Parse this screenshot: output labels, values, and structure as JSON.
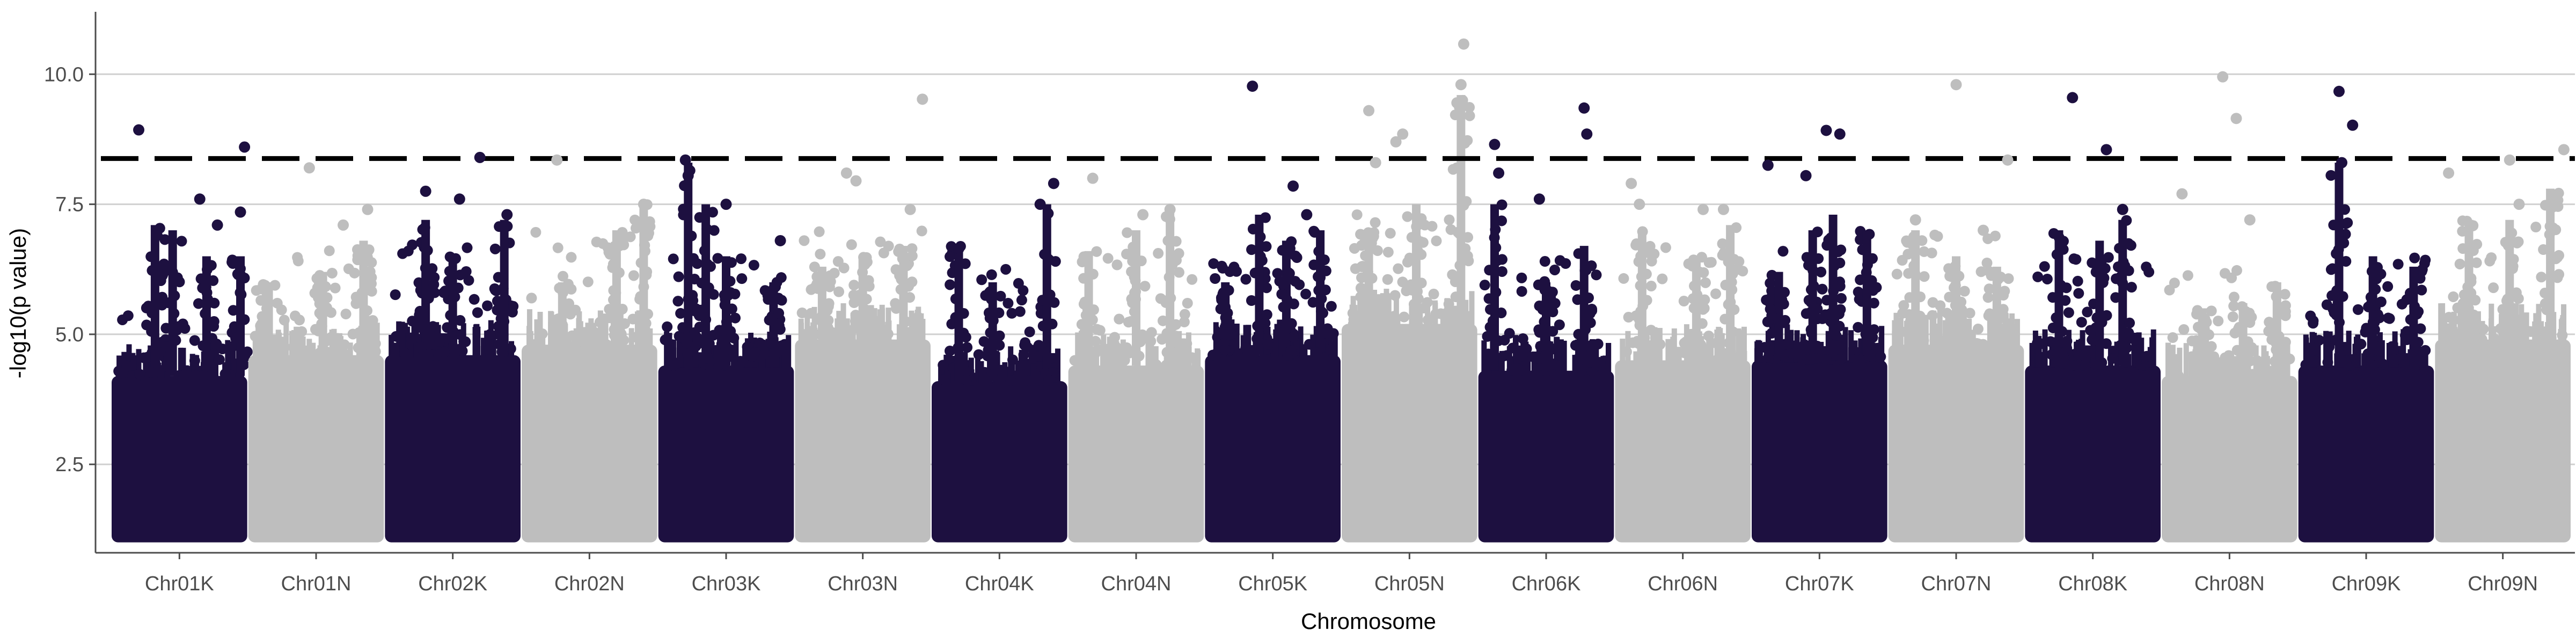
{
  "chart_data": {
    "type": "scatter",
    "title": "",
    "xlabel": "Chromosome",
    "ylabel": "-log10(p value)",
    "ylim": [
      0.8,
      11.2
    ],
    "yticks": [
      2.5,
      5.0,
      7.5,
      10.0
    ],
    "ytick_labels": [
      "2.5",
      "5.0",
      "7.5",
      "10.0"
    ],
    "grid": "horizontal major",
    "legend": "none",
    "threshold": 8.38,
    "threshold_style": "dashed",
    "colors": {
      "odd": "#1d1040",
      "even": "#bebebe",
      "threshold": "#000000",
      "grid": "#d0d0d0",
      "axis": "#4d4d4d"
    },
    "categories": [
      "Chr01K",
      "Chr01N",
      "Chr02K",
      "Chr02N",
      "Chr03K",
      "Chr03N",
      "Chr04K",
      "Chr04N",
      "Chr05K",
      "Chr05N",
      "Chr06K",
      "Chr06N",
      "Chr07K",
      "Chr07N",
      "Chr08K",
      "Chr08N",
      "Chr09K",
      "Chr09N"
    ],
    "series": [
      {
        "chromosome": "Chr01K",
        "color": "#1d1040",
        "band_max": 4.2,
        "peaks": [
          [
            0.32,
            7.1
          ],
          [
            0.45,
            7.0
          ],
          [
            0.7,
            6.5
          ],
          [
            0.95,
            6.5
          ]
        ],
        "points": [
          [
            0.2,
            8.93
          ],
          [
            0.65,
            7.6
          ],
          [
            0.78,
            7.1
          ],
          [
            0.95,
            7.35
          ],
          [
            0.98,
            8.6
          ]
        ]
      },
      {
        "chromosome": "Chr01N",
        "color": "#bebebe",
        "band_max": 4.6,
        "peaks": [
          [
            0.15,
            6.0
          ],
          [
            0.55,
            6.2
          ],
          [
            0.85,
            6.8
          ]
        ],
        "points": [
          [
            0.45,
            8.2
          ],
          [
            0.7,
            7.1
          ],
          [
            0.88,
            7.4
          ]
        ]
      },
      {
        "chromosome": "Chr02K",
        "color": "#1d1040",
        "band_max": 4.6,
        "peaks": [
          [
            0.3,
            7.2
          ],
          [
            0.5,
            6.5
          ],
          [
            0.88,
            7.2
          ]
        ],
        "points": [
          [
            0.3,
            7.75
          ],
          [
            0.55,
            7.6
          ],
          [
            0.7,
            8.4
          ],
          [
            0.9,
            7.3
          ]
        ]
      },
      {
        "chromosome": "Chr02N",
        "color": "#bebebe",
        "band_max": 4.8,
        "peaks": [
          [
            0.3,
            6.0
          ],
          [
            0.7,
            7.0
          ],
          [
            0.9,
            7.5
          ]
        ],
        "points": [
          [
            0.26,
            8.35
          ],
          [
            0.9,
            7.5
          ]
        ]
      },
      {
        "chromosome": "Chr03K",
        "color": "#1d1040",
        "band_max": 4.4,
        "peaks": [
          [
            0.22,
            8.3
          ],
          [
            0.35,
            7.5
          ],
          [
            0.5,
            6.5
          ],
          [
            0.85,
            6.0
          ]
        ],
        "points": [
          [
            0.2,
            8.35
          ],
          [
            0.22,
            8.05
          ],
          [
            0.5,
            7.5
          ],
          [
            0.9,
            6.8
          ]
        ]
      },
      {
        "chromosome": "Chr03N",
        "color": "#bebebe",
        "band_max": 4.9,
        "peaks": [
          [
            0.2,
            6.3
          ],
          [
            0.5,
            6.5
          ],
          [
            0.8,
            6.7
          ]
        ],
        "points": [
          [
            0.38,
            8.1
          ],
          [
            0.45,
            7.95
          ],
          [
            0.85,
            7.4
          ],
          [
            0.94,
            9.52
          ]
        ]
      },
      {
        "chromosome": "Chr04K",
        "color": "#1d1040",
        "band_max": 4.1,
        "peaks": [
          [
            0.2,
            6.7
          ],
          [
            0.45,
            6.0
          ],
          [
            0.85,
            7.5
          ]
        ],
        "points": [
          [
            0.2,
            6.65
          ],
          [
            0.8,
            7.5
          ],
          [
            0.9,
            7.9
          ]
        ]
      },
      {
        "chromosome": "Chr04N",
        "color": "#bebebe",
        "band_max": 4.4,
        "peaks": [
          [
            0.15,
            6.6
          ],
          [
            0.5,
            7.0
          ],
          [
            0.75,
            7.4
          ]
        ],
        "points": [
          [
            0.18,
            8.0
          ],
          [
            0.55,
            7.3
          ],
          [
            0.75,
            7.4
          ]
        ]
      },
      {
        "chromosome": "Chr05K",
        "color": "#1d1040",
        "band_max": 4.6,
        "peaks": [
          [
            0.15,
            6.0
          ],
          [
            0.4,
            7.3
          ],
          [
            0.6,
            6.8
          ],
          [
            0.85,
            7.0
          ]
        ],
        "points": [
          [
            0.35,
            9.77
          ],
          [
            0.65,
            7.85
          ],
          [
            0.75,
            7.3
          ]
        ]
      },
      {
        "chromosome": "Chr05N",
        "color": "#bebebe",
        "band_max": 5.2,
        "peaks": [
          [
            0.2,
            7.0
          ],
          [
            0.55,
            7.5
          ],
          [
            0.88,
            9.6
          ]
        ],
        "points": [
          [
            0.2,
            9.3
          ],
          [
            0.25,
            8.3
          ],
          [
            0.4,
            8.7
          ],
          [
            0.45,
            8.85
          ],
          [
            0.9,
            10.58
          ],
          [
            0.88,
            9.8
          ],
          [
            0.85,
            9.45
          ]
        ]
      },
      {
        "chromosome": "Chr06K",
        "color": "#1d1040",
        "band_max": 4.3,
        "peaks": [
          [
            0.12,
            7.5
          ],
          [
            0.5,
            6.0
          ],
          [
            0.78,
            6.7
          ]
        ],
        "points": [
          [
            0.12,
            8.65
          ],
          [
            0.15,
            8.1
          ],
          [
            0.45,
            7.6
          ],
          [
            0.78,
            9.35
          ],
          [
            0.8,
            8.85
          ]
        ]
      },
      {
        "chromosome": "Chr06N",
        "color": "#bebebe",
        "band_max": 4.5,
        "peaks": [
          [
            0.2,
            7.0
          ],
          [
            0.6,
            6.5
          ],
          [
            0.85,
            7.1
          ]
        ],
        "points": [
          [
            0.12,
            7.9
          ],
          [
            0.18,
            7.5
          ],
          [
            0.65,
            7.4
          ],
          [
            0.8,
            7.4
          ]
        ]
      },
      {
        "chromosome": "Chr07K",
        "color": "#1d1040",
        "band_max": 4.5,
        "peaks": [
          [
            0.2,
            6.2
          ],
          [
            0.45,
            7.0
          ],
          [
            0.6,
            7.3
          ],
          [
            0.85,
            7.0
          ]
        ],
        "points": [
          [
            0.12,
            8.25
          ],
          [
            0.4,
            8.05
          ],
          [
            0.55,
            8.92
          ],
          [
            0.65,
            8.85
          ]
        ]
      },
      {
        "chromosome": "Chr07N",
        "color": "#bebebe",
        "band_max": 4.8,
        "peaks": [
          [
            0.2,
            7.0
          ],
          [
            0.5,
            6.5
          ],
          [
            0.8,
            6.3
          ]
        ],
        "points": [
          [
            0.2,
            7.2
          ],
          [
            0.5,
            9.8
          ],
          [
            0.7,
            7.0
          ],
          [
            0.88,
            8.35
          ]
        ]
      },
      {
        "chromosome": "Chr08K",
        "color": "#1d1040",
        "band_max": 4.4,
        "peaks": [
          [
            0.25,
            7.0
          ],
          [
            0.55,
            6.8
          ],
          [
            0.72,
            7.2
          ]
        ],
        "points": [
          [
            0.35,
            9.55
          ],
          [
            0.6,
            8.55
          ],
          [
            0.72,
            7.4
          ]
        ]
      },
      {
        "chromosome": "Chr08N",
        "color": "#bebebe",
        "band_max": 4.2,
        "peaks": [
          [
            0.3,
            5.5
          ],
          [
            0.6,
            5.6
          ],
          [
            0.85,
            6.0
          ]
        ],
        "points": [
          [
            0.15,
            7.7
          ],
          [
            0.45,
            9.95
          ],
          [
            0.55,
            9.15
          ],
          [
            0.65,
            7.2
          ]
        ]
      },
      {
        "chromosome": "Chr09K",
        "color": "#1d1040",
        "band_max": 4.4,
        "peaks": [
          [
            0.3,
            8.3
          ],
          [
            0.55,
            6.5
          ],
          [
            0.85,
            6.3
          ]
        ],
        "points": [
          [
            0.3,
            9.67
          ],
          [
            0.4,
            9.02
          ],
          [
            0.32,
            8.3
          ]
        ]
      },
      {
        "chromosome": "Chr09N",
        "color": "#bebebe",
        "band_max": 4.9,
        "peaks": [
          [
            0.25,
            7.2
          ],
          [
            0.55,
            7.2
          ],
          [
            0.85,
            7.8
          ]
        ],
        "points": [
          [
            0.1,
            8.1
          ],
          [
            0.55,
            8.35
          ],
          [
            0.62,
            7.5
          ],
          [
            0.95,
            8.55
          ]
        ]
      }
    ]
  }
}
